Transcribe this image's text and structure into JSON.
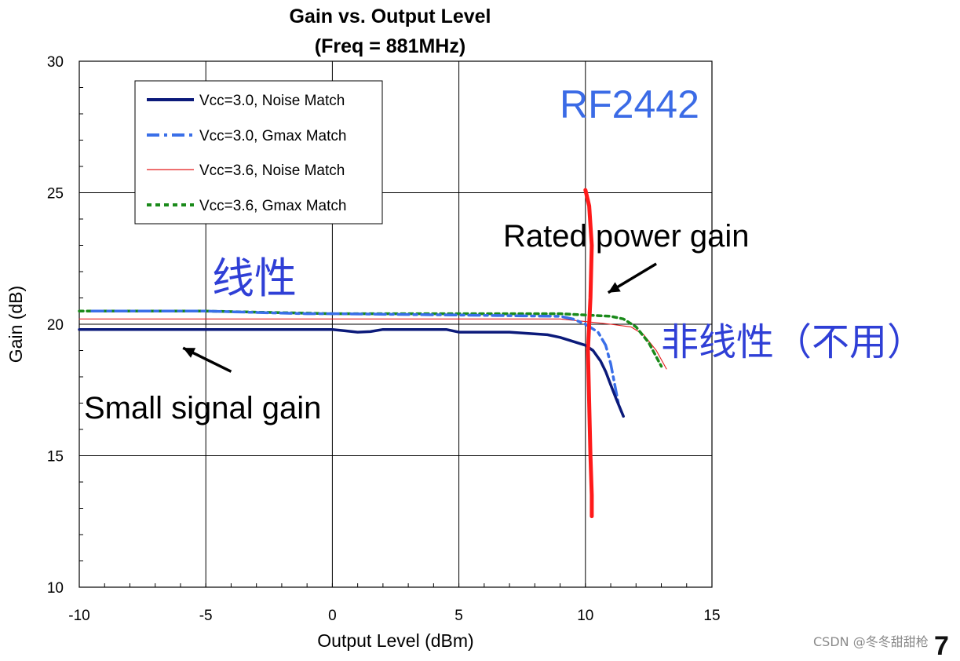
{
  "chart_data": {
    "type": "line",
    "title": "Gain vs. Output Level",
    "subtitle": "(Freq = 881MHz)",
    "xlabel": "Output Level (dBm)",
    "ylabel": "Gain (dB)",
    "xlim": [
      -10,
      15
    ],
    "ylim": [
      10,
      30
    ],
    "xticks": [
      -10,
      -5,
      0,
      5,
      10,
      15
    ],
    "yticks": [
      10,
      15,
      20,
      25,
      30
    ],
    "grid": true,
    "legend_position": "top-left",
    "series": [
      {
        "name": "Vcc=3.0, Noise Match",
        "color": "#0b1a7a",
        "style": "solid-thick",
        "x": [
          -10,
          -5,
          0,
          0.5,
          1,
          1.5,
          2,
          3,
          4.5,
          5,
          7,
          8.5,
          9,
          9.5,
          10,
          10.3,
          10.6,
          10.8,
          11,
          11.2,
          11.5
        ],
        "y": [
          19.8,
          19.8,
          19.8,
          19.75,
          19.7,
          19.72,
          19.8,
          19.8,
          19.8,
          19.7,
          19.7,
          19.6,
          19.5,
          19.35,
          19.2,
          19.0,
          18.6,
          18.2,
          17.7,
          17.2,
          16.5
        ]
      },
      {
        "name": "Vcc=3.0, Gmax Match",
        "color": "#3a6fe8",
        "style": "dash-dot",
        "x": [
          -9.5,
          -5,
          -1,
          0,
          5,
          9,
          9.5,
          10,
          10.5,
          10.8,
          11,
          11.3
        ],
        "y": [
          20.5,
          20.5,
          20.4,
          20.4,
          20.35,
          20.3,
          20.2,
          20.0,
          19.7,
          19.2,
          18.5,
          17.0
        ]
      },
      {
        "name": "Vcc=3.6, Noise Match",
        "color": "#e31a1a",
        "style": "solid-thin",
        "x": [
          -10,
          -5,
          0,
          5,
          9,
          10,
          11,
          11.8,
          12.3,
          12.8,
          13.2
        ],
        "y": [
          20.2,
          20.2,
          20.2,
          20.2,
          20.2,
          20.1,
          20.0,
          19.9,
          19.6,
          19.0,
          18.3
        ]
      },
      {
        "name": "Vcc=3.6, Gmax Match",
        "color": "#1a8a1a",
        "style": "dotted",
        "x": [
          -10,
          -5,
          0,
          5,
          9,
          10,
          11,
          11.5,
          12,
          12.5,
          13
        ],
        "y": [
          20.5,
          20.5,
          20.4,
          20.4,
          20.4,
          20.35,
          20.3,
          20.2,
          19.9,
          19.3,
          18.4
        ]
      }
    ],
    "rated_line": {
      "name": "Rated power gain marker",
      "color": "#ff1a1a",
      "x": [
        10.0,
        10.15,
        10.25,
        10.2,
        10.1,
        10.15,
        10.2,
        10.25,
        10.25
      ],
      "y": [
        25.1,
        24.5,
        23.0,
        21.0,
        19.0,
        17.0,
        15.0,
        13.5,
        12.7
      ]
    },
    "arrows": [
      {
        "from": [
          -4,
          18.2
        ],
        "to": [
          -5.9,
          19.1
        ]
      },
      {
        "from": [
          12.8,
          22.3
        ],
        "to": [
          10.9,
          21.2
        ]
      }
    ]
  },
  "annotations": {
    "brand": "RF2442",
    "linear": "线性",
    "nonlinear": "非线性（不用）",
    "rated": "Rated power gain",
    "small_signal": "Small signal gain",
    "watermark": "CSDN @冬冬甜甜枪",
    "corner_mark": "7"
  },
  "colors": {
    "annotation_blue": "#2f3fd6",
    "brand_blue": "#3b6be6"
  }
}
